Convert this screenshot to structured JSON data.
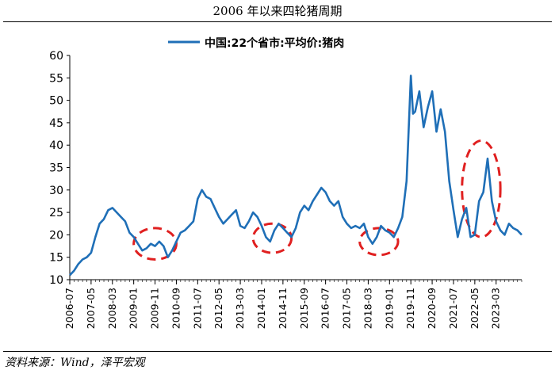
{
  "title": "2006 年以来四轮猪周期",
  "source": "资料来源：Wind，泽平宏观",
  "colors": {
    "line": "#1f6fb7",
    "ellipse": "#e02020",
    "axis": "#000000"
  },
  "chart_data": {
    "type": "line",
    "title": "2006 年以来四轮猪周期",
    "legend_position": "top-center",
    "ylim": [
      10,
      60
    ],
    "yticks": [
      10,
      15,
      20,
      25,
      30,
      35,
      40,
      45,
      50,
      55,
      60
    ],
    "xrange": [
      "2006-07",
      "2024-03"
    ],
    "xticks": [
      "2006-07",
      "2007-05",
      "2008-03",
      "2009-01",
      "2009-11",
      "2010-09",
      "2011-07",
      "2012-05",
      "2013-03",
      "2014-01",
      "2014-11",
      "2015-09",
      "2016-07",
      "2017-05",
      "2018-03",
      "2019-01",
      "2019-11",
      "2020-09",
      "2021-07",
      "2022-05",
      "2023-03"
    ],
    "grid": false,
    "series": [
      {
        "name": "中国:22个省市:平均价:猪肉",
        "points": [
          [
            "2006-07",
            11.0
          ],
          [
            "2006-09",
            12.0
          ],
          [
            "2006-11",
            13.5
          ],
          [
            "2007-01",
            14.5
          ],
          [
            "2007-03",
            15.0
          ],
          [
            "2007-05",
            16.0
          ],
          [
            "2007-07",
            19.5
          ],
          [
            "2007-09",
            22.5
          ],
          [
            "2007-11",
            23.5
          ],
          [
            "2008-01",
            25.5
          ],
          [
            "2008-03",
            26.0
          ],
          [
            "2008-05",
            25.0
          ],
          [
            "2008-07",
            24.0
          ],
          [
            "2008-09",
            23.0
          ],
          [
            "2008-11",
            20.5
          ],
          [
            "2009-01",
            19.5
          ],
          [
            "2009-03",
            18.0
          ],
          [
            "2009-05",
            16.5
          ],
          [
            "2009-07",
            17.0
          ],
          [
            "2009-09",
            18.0
          ],
          [
            "2009-11",
            17.5
          ],
          [
            "2010-01",
            18.5
          ],
          [
            "2010-03",
            17.5
          ],
          [
            "2010-05",
            15.0
          ],
          [
            "2010-07",
            16.5
          ],
          [
            "2010-09",
            18.5
          ],
          [
            "2010-11",
            20.5
          ],
          [
            "2011-01",
            21.0
          ],
          [
            "2011-03",
            22.0
          ],
          [
            "2011-05",
            23.0
          ],
          [
            "2011-07",
            28.0
          ],
          [
            "2011-09",
            30.0
          ],
          [
            "2011-11",
            28.5
          ],
          [
            "2012-01",
            28.0
          ],
          [
            "2012-03",
            26.0
          ],
          [
            "2012-05",
            24.0
          ],
          [
            "2012-07",
            22.5
          ],
          [
            "2012-09",
            23.5
          ],
          [
            "2012-11",
            24.5
          ],
          [
            "2013-01",
            25.5
          ],
          [
            "2013-03",
            22.0
          ],
          [
            "2013-05",
            21.5
          ],
          [
            "2013-07",
            23.0
          ],
          [
            "2013-09",
            25.0
          ],
          [
            "2013-11",
            24.0
          ],
          [
            "2014-01",
            22.0
          ],
          [
            "2014-03",
            19.5
          ],
          [
            "2014-05",
            18.5
          ],
          [
            "2014-07",
            21.0
          ],
          [
            "2014-09",
            22.5
          ],
          [
            "2014-11",
            21.5
          ],
          [
            "2015-01",
            20.5
          ],
          [
            "2015-03",
            19.5
          ],
          [
            "2015-05",
            21.5
          ],
          [
            "2015-07",
            25.0
          ],
          [
            "2015-09",
            26.5
          ],
          [
            "2015-11",
            25.5
          ],
          [
            "2016-01",
            27.5
          ],
          [
            "2016-03",
            29.0
          ],
          [
            "2016-05",
            30.5
          ],
          [
            "2016-07",
            29.5
          ],
          [
            "2016-09",
            27.5
          ],
          [
            "2016-11",
            26.5
          ],
          [
            "2017-01",
            27.5
          ],
          [
            "2017-03",
            24.0
          ],
          [
            "2017-05",
            22.5
          ],
          [
            "2017-07",
            21.5
          ],
          [
            "2017-09",
            22.0
          ],
          [
            "2017-11",
            21.5
          ],
          [
            "2018-01",
            22.5
          ],
          [
            "2018-03",
            19.5
          ],
          [
            "2018-05",
            18.0
          ],
          [
            "2018-07",
            19.5
          ],
          [
            "2018-09",
            22.0
          ],
          [
            "2018-11",
            21.0
          ],
          [
            "2019-01",
            20.5
          ],
          [
            "2019-03",
            19.5
          ],
          [
            "2019-05",
            21.5
          ],
          [
            "2019-07",
            24.0
          ],
          [
            "2019-09",
            32.0
          ],
          [
            "2019-11",
            55.5
          ],
          [
            "2019-12",
            47.0
          ],
          [
            "2020-01",
            47.5
          ],
          [
            "2020-03",
            52.0
          ],
          [
            "2020-05",
            44.0
          ],
          [
            "2020-07",
            48.5
          ],
          [
            "2020-09",
            52.0
          ],
          [
            "2020-11",
            43.0
          ],
          [
            "2021-01",
            48.0
          ],
          [
            "2021-03",
            43.0
          ],
          [
            "2021-05",
            32.0
          ],
          [
            "2021-07",
            25.5
          ],
          [
            "2021-09",
            19.5
          ],
          [
            "2021-11",
            23.5
          ],
          [
            "2022-01",
            26.0
          ],
          [
            "2022-03",
            19.5
          ],
          [
            "2022-05",
            20.0
          ],
          [
            "2022-07",
            27.5
          ],
          [
            "2022-09",
            29.5
          ],
          [
            "2022-11",
            37.0
          ],
          [
            "2023-01",
            27.5
          ],
          [
            "2023-03",
            23.0
          ],
          [
            "2023-05",
            21.0
          ],
          [
            "2023-07",
            20.0
          ],
          [
            "2023-09",
            22.5
          ],
          [
            "2023-11",
            21.5
          ],
          [
            "2024-01",
            21.0
          ],
          [
            "2024-03",
            20.0
          ]
        ]
      }
    ],
    "annotations": [
      {
        "type": "dashed-ellipse",
        "from": "2009-01",
        "to": "2010-09",
        "y_low": 14.5,
        "y_high": 21.5
      },
      {
        "type": "dashed-ellipse",
        "from": "2013-09",
        "to": "2015-03",
        "y_low": 16.0,
        "y_high": 22.5
      },
      {
        "type": "dashed-ellipse",
        "from": "2017-11",
        "to": "2019-05",
        "y_low": 15.5,
        "y_high": 21.5
      },
      {
        "type": "dashed-ellipse",
        "from": "2021-11",
        "to": "2023-05",
        "y_low": 19.5,
        "y_high": 41.0
      }
    ]
  }
}
